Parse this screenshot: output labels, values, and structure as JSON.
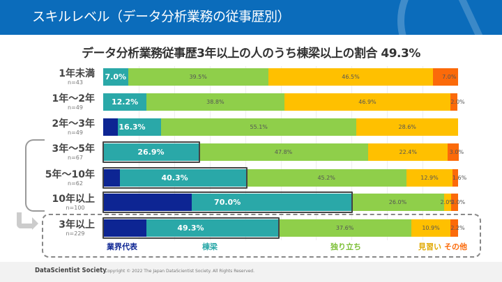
{
  "header": {
    "title": "スキルレベル（データ分析業務の従事歴別）"
  },
  "footer": {
    "brand": "DataScientist Society",
    "copyright": "Copyright © 2022 The Japan DataScientist Society. All Rights Reserved."
  },
  "chart_data": {
    "type": "bar",
    "orientation": "horizontal-stacked-100",
    "title": "データ分析業務従事歴3年以上の人のうち棟梁以上の割合 49.3%",
    "legend": [
      "業界代表",
      "棟梁",
      "独り立ち",
      "見習い",
      "その他"
    ],
    "legend_placement": "bottom",
    "colors": [
      "#0d2593",
      "#2aa8a8",
      "#8fcf4a",
      "#ffc000",
      "#fb6a0a"
    ],
    "categories": [
      {
        "label": "1年未満",
        "n": "n=43"
      },
      {
        "label": "1年〜2年",
        "n": "n=49"
      },
      {
        "label": "2年〜3年",
        "n": "n=49"
      },
      {
        "label": "3年〜5年",
        "n": "n=67"
      },
      {
        "label": "5年〜10年",
        "n": "n=62"
      },
      {
        "label": "10年以上",
        "n": "n=100"
      },
      {
        "label": "3年以上",
        "n": "n=229"
      }
    ],
    "series": [
      {
        "name": "業界代表",
        "values": [
          0,
          0,
          4.1,
          0,
          4.8,
          25.0,
          12.2
        ]
      },
      {
        "name": "棟梁",
        "values": [
          7.0,
          12.2,
          12.2,
          26.9,
          35.5,
          45.0,
          37.1
        ]
      },
      {
        "name": "独り立ち",
        "values": [
          39.5,
          38.8,
          55.1,
          47.8,
          45.2,
          26.0,
          37.6
        ]
      },
      {
        "name": "見習い",
        "values": [
          46.5,
          46.9,
          28.6,
          22.4,
          12.9,
          2.0,
          10.9
        ]
      },
      {
        "name": "その他",
        "values": [
          7.0,
          2.0,
          0,
          3.0,
          1.6,
          2.0,
          2.2
        ]
      }
    ],
    "labels": {
      "toryo_or_above": [
        "7.0%",
        "12.2%",
        "16.3%",
        "26.9%",
        "40.3%",
        "70.0%",
        "49.3%"
      ],
      "hitoridachi": [
        "39.5%",
        "38.8%",
        "55.1%",
        "47.8%",
        "45.2%",
        "26.0%",
        "37.6%"
      ],
      "minarai": [
        "46.5%",
        "46.9%",
        "28.6%",
        "22.4%",
        "12.9%",
        "2.0%",
        "10.9%"
      ],
      "sonota": [
        "7.0%",
        "2.0%",
        "",
        "3.0%",
        "1.6%",
        "2.0%",
        "2.2%"
      ]
    },
    "highlighted_rows": [
      3,
      4,
      5,
      6
    ],
    "xlim": [
      0,
      100
    ]
  }
}
